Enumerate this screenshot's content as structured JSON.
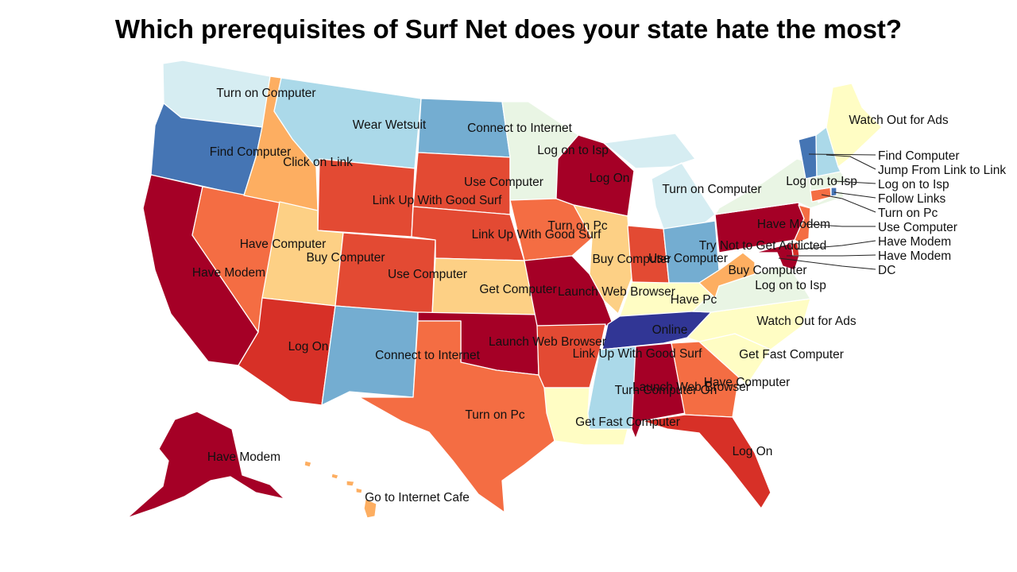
{
  "title": "Which prerequisites of Surf Net does your state hate the most?",
  "colors": {
    "dark_red": "#a50026",
    "red": "#d73027",
    "red_orange": "#e34a33",
    "orange": "#f46d43",
    "light_orange": "#fdae61",
    "gold": "#fdd085",
    "pale_yellow": "#fffdc4",
    "pale_green": "#e9f5e4",
    "pale_cyan": "#d6edf2",
    "light_blue": "#abd9e9",
    "mid_blue": "#74add1",
    "blue": "#4575b4",
    "dark_blue": "#313695"
  },
  "states": {
    "WA": {
      "label": "Turn on Computer"
    },
    "OR": {
      "label": "Find Computer"
    },
    "CA": {
      "label": "Have Modem"
    },
    "NV": {
      "label": "Have Computer"
    },
    "ID": {
      "label": "Click on Link"
    },
    "MT": {
      "label": "Wear Wetsuit"
    },
    "WY": {
      "label": "Link Up With Good Surf"
    },
    "UT": {
      "label": "Buy Computer"
    },
    "AZ": {
      "label": "Log On"
    },
    "CO": {
      "label": "Use Computer"
    },
    "NM": {
      "label": "Connect to Internet"
    },
    "ND": {
      "label": "Connect to Internet"
    },
    "SD": {
      "label": "Use Computer"
    },
    "NE": {
      "label": "Link Up With Good Surf"
    },
    "KS": {
      "label": "Get Computer"
    },
    "OK": {
      "label": "Launch Web Browser"
    },
    "TX": {
      "label": "Turn on Pc"
    },
    "MN": {
      "label": "Log on to Isp"
    },
    "IA": {
      "label": "Turn on Pc"
    },
    "MO": {
      "label": "Launch Web Browser"
    },
    "AR": {
      "label": "Link Up With Good Surf"
    },
    "LA": {
      "label": "Get Fast Computer"
    },
    "WI": {
      "label": "Log On"
    },
    "IL": {
      "label": "Buy Computer"
    },
    "MI": {
      "label": "Turn on Computer"
    },
    "IN": {
      "label": "Use Computer"
    },
    "OH": {
      "label": "Try Not to Get Addicted"
    },
    "KY": {
      "label": "Have Pc"
    },
    "TN": {
      "label": "Online"
    },
    "MS": {
      "label": "Turn Computer On"
    },
    "AL": {
      "label": "Launch Web Browser"
    },
    "GA": {
      "label": "Have Computer"
    },
    "FL": {
      "label": "Log On"
    },
    "SC": {
      "label": "Get Fast Computer"
    },
    "NC": {
      "label": "Watch Out for Ads"
    },
    "VA": {
      "label": "Log on to Isp"
    },
    "WV": {
      "label": "Buy Computer"
    },
    "PA": {
      "label": "Have Modem"
    },
    "NY": {
      "label": "Log on to Isp"
    },
    "ME": {
      "label": "Watch Out for Ads"
    },
    "AK": {
      "label": "Have Modem"
    },
    "HI": {
      "label": "Go to Internet Cafe"
    }
  },
  "callouts": [
    {
      "state": "VT",
      "label": "Find Computer"
    },
    {
      "state": "NH",
      "label": "Jump From Link to Link"
    },
    {
      "state": "MA",
      "label": "Log on to Isp"
    },
    {
      "state": "RI",
      "label": "Follow Links"
    },
    {
      "state": "CT",
      "label": "Turn on Pc"
    },
    {
      "state": "NJ",
      "label": "Use Computer"
    },
    {
      "state": "DE",
      "label": "Have Modem"
    },
    {
      "state": "MD",
      "label": "Have Modem"
    },
    {
      "state": "DC",
      "label": "DC"
    }
  ]
}
